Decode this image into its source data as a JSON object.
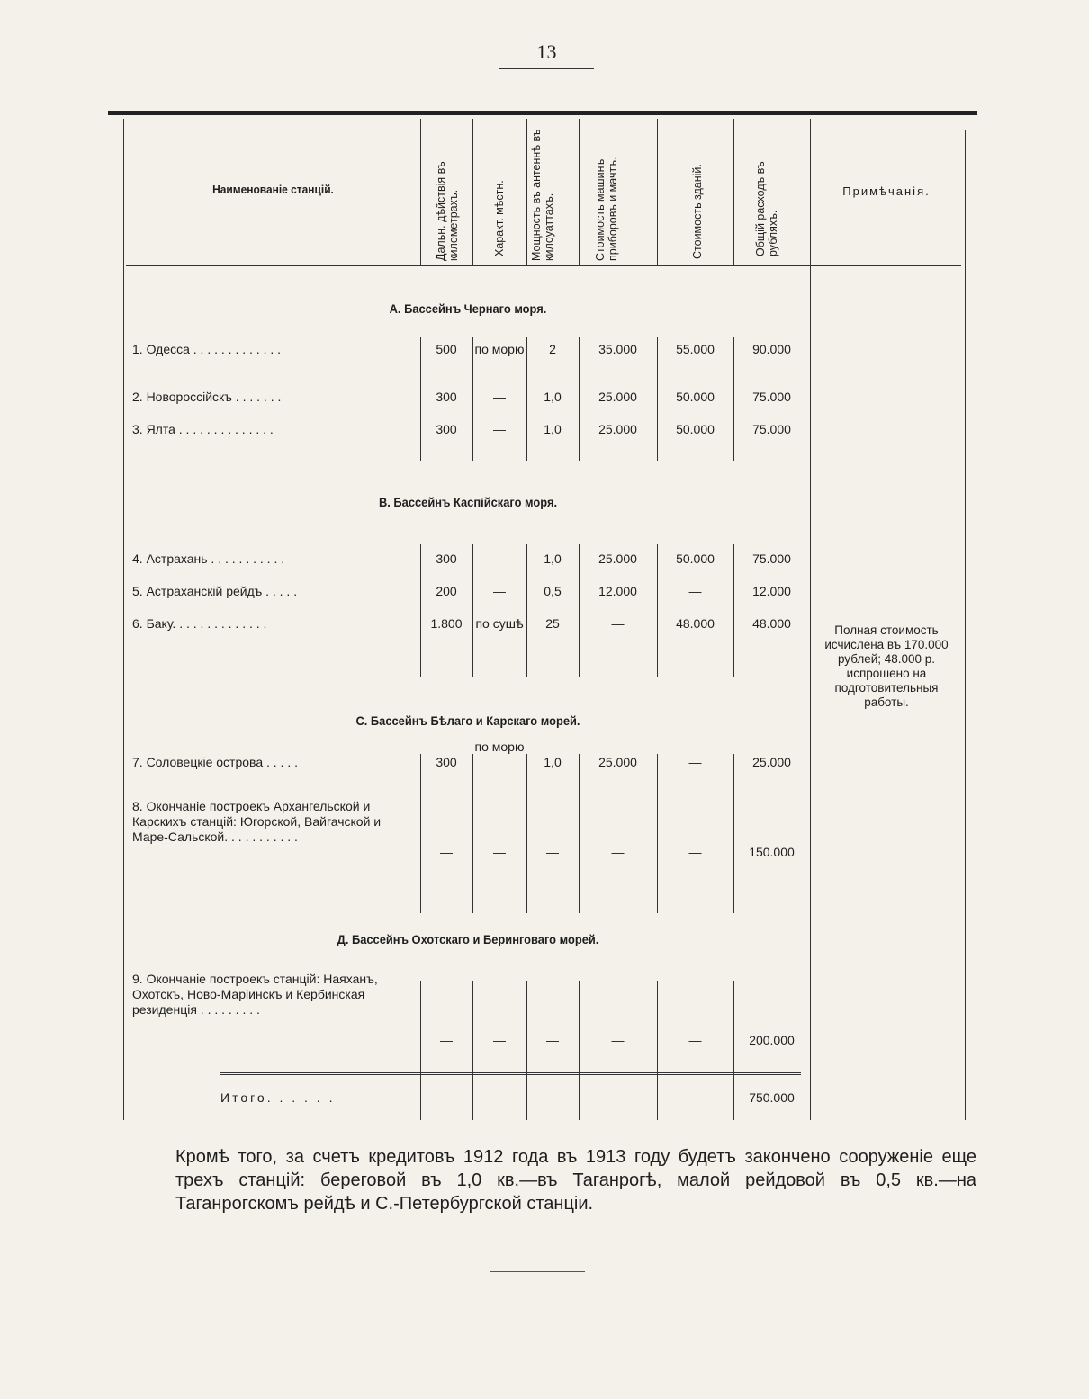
{
  "page_number": "13",
  "table": {
    "headers": {
      "name": "Наименованіе станцій.",
      "range": "Дальн. дѣйствія въ километрахъ.",
      "location": "Характ. мѣстн.",
      "power": "Мощность въ антеннѣ въ килоуаттахъ.",
      "machines": "Стоимость машинъ приборовъ и мачтъ.",
      "buildings": "Стоимость зданій.",
      "total": "Общій расходъ въ рубляхъ.",
      "notes": "Примѣчанія."
    },
    "sections": [
      {
        "title": "А. Бассейнъ Чернаго моря.",
        "rows": [
          {
            "name": "1. Одесса . . . . . . . . . . . . .",
            "range": "500",
            "location": "по морю",
            "power": "2",
            "machines": "35.000",
            "buildings": "55.000",
            "total": "90.000"
          },
          {
            "name": "2. Новороссійскъ . . . . . . .",
            "range": "300",
            "location": "—",
            "power": "1,0",
            "machines": "25.000",
            "buildings": "50.000",
            "total": "75.000"
          },
          {
            "name": "3. Ялта . . . . . . . . . . . . . .",
            "range": "300",
            "location": "—",
            "power": "1,0",
            "machines": "25.000",
            "buildings": "50.000",
            "total": "75.000"
          }
        ]
      },
      {
        "title": "В. Бассейнъ Каспійскаго моря.",
        "rows": [
          {
            "name": "4. Астрахань . . . . . . . . . . .",
            "range": "300",
            "location": "—",
            "power": "1,0",
            "machines": "25.000",
            "buildings": "50.000",
            "total": "75.000"
          },
          {
            "name": "5. Астраханскій рейдъ . . . . .",
            "range": "200",
            "location": "—",
            "power": "0,5",
            "machines": "12.000",
            "buildings": "—",
            "total": "12.000"
          },
          {
            "name": "6. Баку. . . . . . . . . . . . . .",
            "range": "1.800",
            "location": "по сушѣ",
            "power": "25",
            "machines": "—",
            "buildings": "48.000",
            "total": "48.000",
            "note": "Полная стоимость исчислена въ 170.000 рублей; 48.000 р. испрошено на подготовительныя работы."
          }
        ]
      },
      {
        "title": "С. Бассейнъ Бѣлаго и Карскаго морей.",
        "rows": [
          {
            "name": "7. Соловецкіе острова . . . . .",
            "range": "300",
            "location": "по морю",
            "power": "1,0",
            "machines": "25.000",
            "buildings": "—",
            "total": "25.000"
          },
          {
            "name": "8. Окончаніе построекъ Архангельской и Карскихъ станцій: Югорской, Вайгачской и Маре-Сальской. . . . . . . . . . .",
            "range": "—",
            "location": "—",
            "power": "—",
            "machines": "—",
            "buildings": "—",
            "total": "150.000"
          }
        ]
      },
      {
        "title": "Д. Бассейнъ Охотскаго и Беринговаго морей.",
        "rows": [
          {
            "name": "9. Окончаніе построекъ станцій: Наяханъ, Охотскъ, Ново-Маріинскъ и Кербинская резиденція . . . . . . . . .",
            "range": "—",
            "location": "—",
            "power": "—",
            "machines": "—",
            "buildings": "—",
            "total": "200.000"
          }
        ]
      }
    ],
    "total_row": {
      "name": "Итого. . . . . .",
      "range": "—",
      "location": "—",
      "power": "—",
      "machines": "—",
      "buildings": "—",
      "total": "750.000"
    }
  },
  "paragraph": "Кромѣ того, за счетъ кредитовъ 1912 года въ 1913 году будетъ закончено сооруженіе еще трехъ станцій: береговой въ 1,0 кв.—въ Таганрогѣ, малой рейдовой въ 0,5 кв.—на Таганрогскомъ рейдѣ и С.-Петербургской станціи."
}
